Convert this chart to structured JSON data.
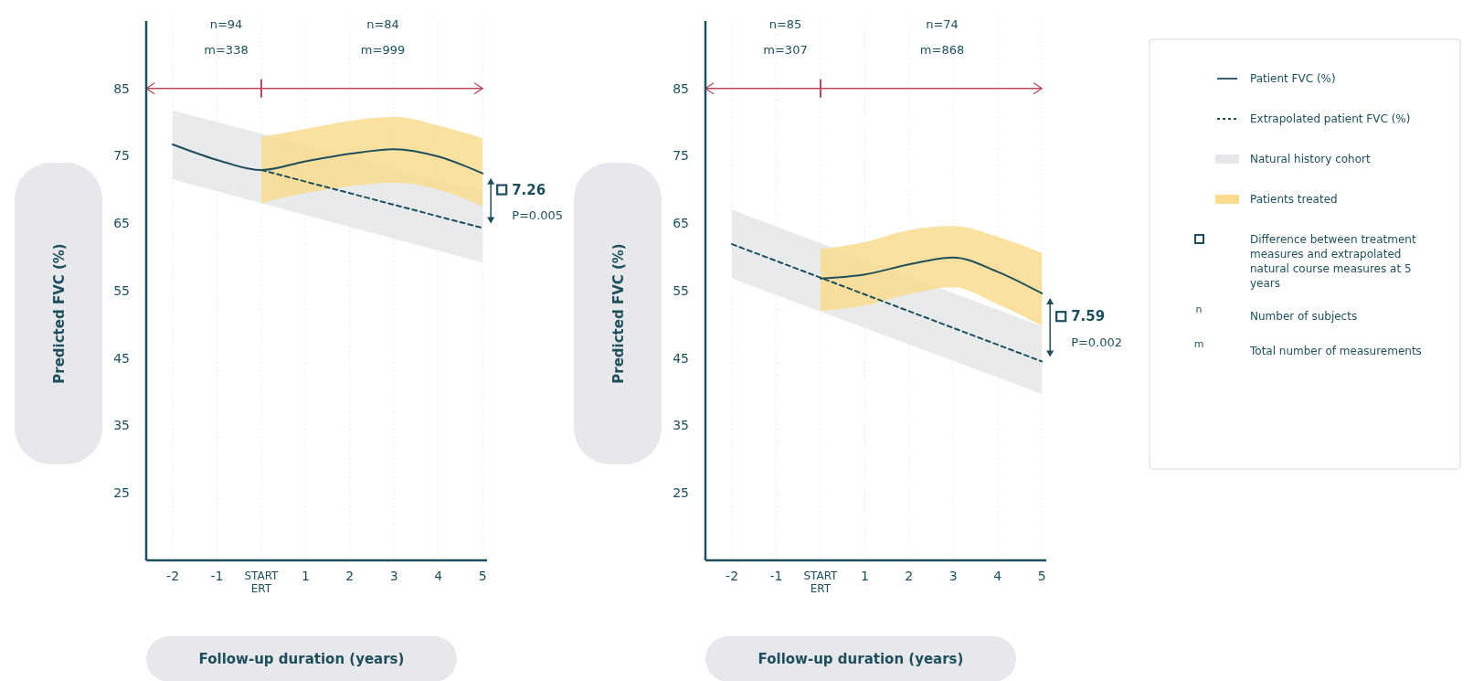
{
  "chart_data": [
    {
      "type": "line",
      "xlabel": "Follow-up duration (years)",
      "ylabel": "Predicted FVC (%)",
      "xlim": [
        -2.6,
        5.1
      ],
      "ylim": [
        15,
        95
      ],
      "xticks": [
        -2,
        -1,
        {
          "value": 0,
          "label": "START ERT"
        },
        1,
        2,
        3,
        4,
        5
      ],
      "yticks": [
        25,
        35,
        45,
        55,
        65,
        75,
        85
      ],
      "grid": "x",
      "legend": false,
      "series": [
        {
          "type": "line",
          "color": "#e4e6e9",
          "x": [
            -2,
            5
          ],
          "values": [
            null,
            null
          ],
          "lower": [
            71.5,
            59.2
          ],
          "upper": [
            81.7,
            69.8
          ]
        },
        {
          "type": "line",
          "color": "#f9dc8e",
          "x": [
            0,
            1,
            2,
            3,
            4,
            5
          ],
          "values": [
            null,
            null,
            null,
            null,
            null,
            null
          ],
          "lower": [
            68,
            69.5,
            70.5,
            71,
            70,
            67.5
          ],
          "upper": [
            77.8,
            79,
            80.2,
            80.8,
            79.5,
            77.6
          ]
        },
        {
          "type": "line",
          "line_style": "solid",
          "color": "#1f4f5c",
          "x": [
            -2,
            -1,
            0,
            1,
            2,
            3,
            4,
            5
          ],
          "values": [
            76.7,
            74.4,
            72.9,
            74.2,
            75.3,
            76,
            74.9,
            72.4
          ]
        },
        {
          "type": "line",
          "line_style": "dashed",
          "color": "#1f4f5c",
          "x": [
            0,
            5
          ],
          "values": [
            72.9,
            64.3
          ]
        }
      ],
      "ref_lines": [
        {
          "axis": "y",
          "value": 85,
          "color": "#b5485a"
        }
      ],
      "annotations": [
        "n=94",
        "m=338",
        "n=84",
        "m=999",
        "7.26",
        "P=0.005"
      ]
    },
    {
      "type": "line",
      "xlabel": "Follow-up duration (years)",
      "ylabel": "Predicted FVC (%)",
      "xlim": [
        -2.6,
        5.1
      ],
      "ylim": [
        15,
        95
      ],
      "xticks": [
        -2,
        -1,
        {
          "value": 0,
          "label": "START ERT"
        },
        1,
        2,
        3,
        4,
        5
      ],
      "yticks": [
        25,
        35,
        45,
        55,
        65,
        75,
        85
      ],
      "grid": "x",
      "legend": "right",
      "series": [
        {
          "name": "Natural history cohort",
          "type": "line",
          "color": "#e4e6e9",
          "x": [
            -2,
            5
          ],
          "values": [
            null,
            null
          ],
          "lower": [
            56.8,
            39.7
          ],
          "upper": [
            67,
            49.7
          ]
        },
        {
          "name": "Patients treated",
          "type": "line",
          "color": "#f9dc8e",
          "x": [
            0,
            1,
            2,
            3,
            4,
            5
          ],
          "values": [
            null,
            null,
            null,
            null,
            null,
            null
          ],
          "lower": [
            52,
            52.8,
            54.5,
            55.5,
            53,
            49.8
          ],
          "upper": [
            61.2,
            62.2,
            64,
            64.6,
            63,
            60.6
          ]
        },
        {
          "name": "Patient FVC (%)",
          "type": "line",
          "line_style": "solid",
          "color": "#1f4f5c",
          "x": [
            0,
            1,
            2,
            3,
            4,
            5
          ],
          "values": [
            56.8,
            57.4,
            58.9,
            59.9,
            57.8,
            54.6
          ]
        },
        {
          "name": "Extrapolated patient FVC (%)",
          "type": "line",
          "line_style": "dashed",
          "color": "#1f4f5c",
          "x": [
            -2,
            5
          ],
          "values": [
            61.9,
            44.5
          ]
        }
      ],
      "ref_lines": [
        {
          "axis": "y",
          "value": 85,
          "color": "#b5485a"
        }
      ],
      "annotations": [
        "n=85",
        "m=307",
        "n=74",
        "m=868",
        "7.59",
        "P=0.002",
        "Difference between treatment measures and extrapolated natural course measures at 5 years",
        "n",
        "Number of subjects",
        "m",
        "Total number of measurements"
      ]
    }
  ]
}
